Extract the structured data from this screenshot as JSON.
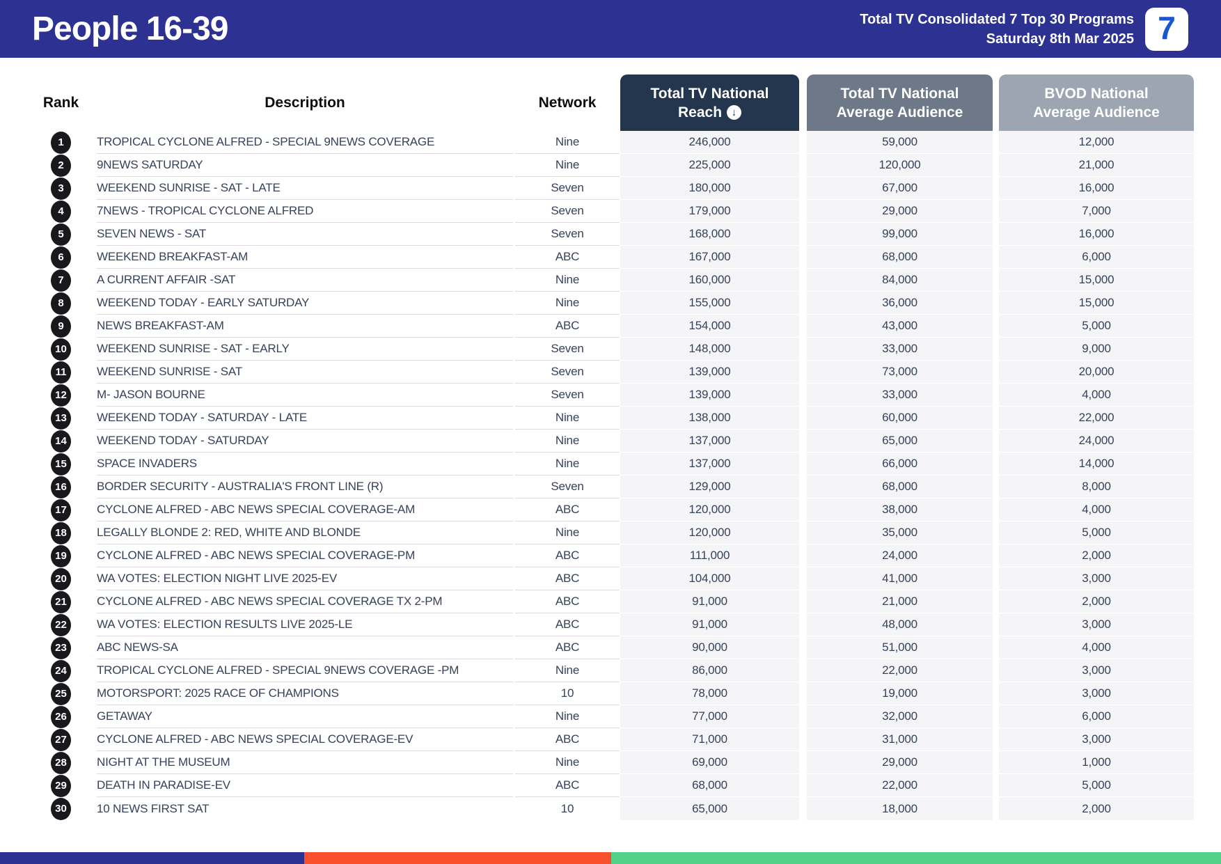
{
  "header": {
    "title": "People 16-39",
    "subtitle_line1": "Total TV Consolidated 7 Top 30 Programs",
    "subtitle_line2": "Saturday 8th Mar 2025",
    "logo_glyph": "7"
  },
  "table": {
    "labels": {
      "rank": "Rank",
      "description": "Description",
      "network": "Network"
    },
    "columns": {
      "reach_line1": "Total TV National",
      "reach_line2": "Reach",
      "avg_line1": "Total TV National",
      "avg_line2": "Average Audience",
      "bvod_line1": "BVOD National",
      "bvod_line2": "Average Audience"
    },
    "sort_icon_glyph": "↓",
    "rows": [
      {
        "rank": 1,
        "description": "TROPICAL CYCLONE ALFRED - SPECIAL 9NEWS COVERAGE",
        "network": "Nine",
        "reach": "246,000",
        "avg": "59,000",
        "bvod": "12,000"
      },
      {
        "rank": 2,
        "description": "9NEWS SATURDAY",
        "network": "Nine",
        "reach": "225,000",
        "avg": "120,000",
        "bvod": "21,000"
      },
      {
        "rank": 3,
        "description": "WEEKEND SUNRISE - SAT - LATE",
        "network": "Seven",
        "reach": "180,000",
        "avg": "67,000",
        "bvod": "16,000"
      },
      {
        "rank": 4,
        "description": "7NEWS - TROPICAL CYCLONE ALFRED",
        "network": "Seven",
        "reach": "179,000",
        "avg": "29,000",
        "bvod": "7,000"
      },
      {
        "rank": 5,
        "description": "SEVEN NEWS - SAT",
        "network": "Seven",
        "reach": "168,000",
        "avg": "99,000",
        "bvod": "16,000"
      },
      {
        "rank": 6,
        "description": "WEEKEND BREAKFAST-AM",
        "network": "ABC",
        "reach": "167,000",
        "avg": "68,000",
        "bvod": "6,000"
      },
      {
        "rank": 7,
        "description": "A CURRENT AFFAIR -SAT",
        "network": "Nine",
        "reach": "160,000",
        "avg": "84,000",
        "bvod": "15,000"
      },
      {
        "rank": 8,
        "description": "WEEKEND TODAY - EARLY SATURDAY",
        "network": "Nine",
        "reach": "155,000",
        "avg": "36,000",
        "bvod": "15,000"
      },
      {
        "rank": 9,
        "description": "NEWS BREAKFAST-AM",
        "network": "ABC",
        "reach": "154,000",
        "avg": "43,000",
        "bvod": "5,000"
      },
      {
        "rank": 10,
        "description": "WEEKEND SUNRISE - SAT - EARLY",
        "network": "Seven",
        "reach": "148,000",
        "avg": "33,000",
        "bvod": "9,000"
      },
      {
        "rank": 11,
        "description": "WEEKEND SUNRISE - SAT",
        "network": "Seven",
        "reach": "139,000",
        "avg": "73,000",
        "bvod": "20,000"
      },
      {
        "rank": 12,
        "description": "M- JASON BOURNE",
        "network": "Seven",
        "reach": "139,000",
        "avg": "33,000",
        "bvod": "4,000"
      },
      {
        "rank": 13,
        "description": "WEEKEND TODAY - SATURDAY - LATE",
        "network": "Nine",
        "reach": "138,000",
        "avg": "60,000",
        "bvod": "22,000"
      },
      {
        "rank": 14,
        "description": "WEEKEND TODAY - SATURDAY",
        "network": "Nine",
        "reach": "137,000",
        "avg": "65,000",
        "bvod": "24,000"
      },
      {
        "rank": 15,
        "description": "SPACE INVADERS",
        "network": "Nine",
        "reach": "137,000",
        "avg": "66,000",
        "bvod": "14,000"
      },
      {
        "rank": 16,
        "description": "BORDER SECURITY - AUSTRALIA'S FRONT LINE (R)",
        "network": "Seven",
        "reach": "129,000",
        "avg": "68,000",
        "bvod": "8,000"
      },
      {
        "rank": 17,
        "description": "CYCLONE ALFRED - ABC NEWS SPECIAL COVERAGE-AM",
        "network": "ABC",
        "reach": "120,000",
        "avg": "38,000",
        "bvod": "4,000"
      },
      {
        "rank": 18,
        "description": "LEGALLY BLONDE 2: RED, WHITE AND BLONDE",
        "network": "Nine",
        "reach": "120,000",
        "avg": "35,000",
        "bvod": "5,000"
      },
      {
        "rank": 19,
        "description": "CYCLONE ALFRED - ABC NEWS SPECIAL COVERAGE-PM",
        "network": "ABC",
        "reach": "111,000",
        "avg": "24,000",
        "bvod": "2,000"
      },
      {
        "rank": 20,
        "description": "WA VOTES: ELECTION NIGHT LIVE 2025-EV",
        "network": "ABC",
        "reach": "104,000",
        "avg": "41,000",
        "bvod": "3,000"
      },
      {
        "rank": 21,
        "description": "CYCLONE ALFRED - ABC NEWS SPECIAL COVERAGE TX 2-PM",
        "network": "ABC",
        "reach": "91,000",
        "avg": "21,000",
        "bvod": "2,000"
      },
      {
        "rank": 22,
        "description": "WA VOTES: ELECTION RESULTS LIVE 2025-LE",
        "network": "ABC",
        "reach": "91,000",
        "avg": "48,000",
        "bvod": "3,000"
      },
      {
        "rank": 23,
        "description": "ABC NEWS-SA",
        "network": "ABC",
        "reach": "90,000",
        "avg": "51,000",
        "bvod": "4,000"
      },
      {
        "rank": 24,
        "description": "TROPICAL CYCLONE ALFRED - SPECIAL 9NEWS COVERAGE -PM",
        "network": "Nine",
        "reach": "86,000",
        "avg": "22,000",
        "bvod": "3,000"
      },
      {
        "rank": 25,
        "description": "MOTORSPORT: 2025 RACE OF CHAMPIONS",
        "network": "10",
        "reach": "78,000",
        "avg": "19,000",
        "bvod": "3,000"
      },
      {
        "rank": 26,
        "description": "GETAWAY",
        "network": "Nine",
        "reach": "77,000",
        "avg": "32,000",
        "bvod": "6,000"
      },
      {
        "rank": 27,
        "description": "CYCLONE ALFRED - ABC NEWS SPECIAL COVERAGE-EV",
        "network": "ABC",
        "reach": "71,000",
        "avg": "31,000",
        "bvod": "3,000"
      },
      {
        "rank": 28,
        "description": "NIGHT AT THE MUSEUM",
        "network": "Nine",
        "reach": "69,000",
        "avg": "29,000",
        "bvod": "1,000"
      },
      {
        "rank": 29,
        "description": "DEATH IN PARADISE-EV",
        "network": "ABC",
        "reach": "68,000",
        "avg": "22,000",
        "bvod": "5,000"
      },
      {
        "rank": 30,
        "description": "10 NEWS FIRST SAT",
        "network": "10",
        "reach": "65,000",
        "avg": "18,000",
        "bvod": "2,000"
      }
    ]
  },
  "colors": {
    "banner_blue": "#2D3192",
    "reach_header": "#24364E",
    "avg_header": "#6D7888",
    "bvod_header": "#9CA5B1",
    "value_cell_bg": "#F5F5F7",
    "body_text": "#36415A",
    "rank_badge": "#19191D",
    "logo_seven_blue": "#1B56D1"
  },
  "footer": {
    "stripe_colors": [
      "#2D3192",
      "#F7502A",
      "#53D18A"
    ]
  }
}
